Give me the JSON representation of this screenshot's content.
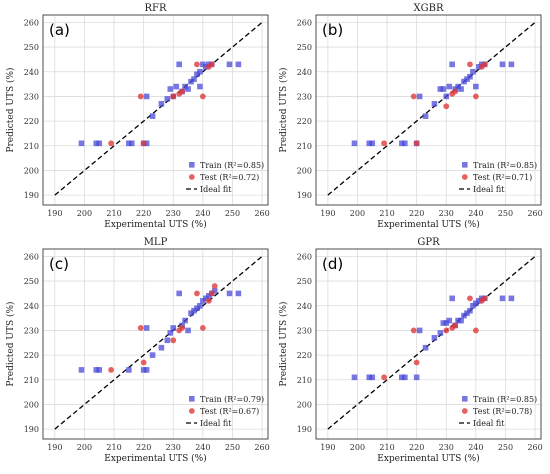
{
  "chart_data": [
    {
      "type": "scatter",
      "title": "RFR",
      "panel_label": "(a)",
      "xlabel": "Experimental UTS (%)",
      "ylabel": "Predicted UTS (%)",
      "xlim": [
        186,
        262
      ],
      "ylim": [
        186,
        263
      ],
      "ticks": [
        190,
        200,
        210,
        220,
        230,
        240,
        250,
        260
      ],
      "grid": true,
      "legend_position": "bottom-right",
      "legend": [
        "Train (R²=0.85)",
        "Test (R²=0.72)",
        "Ideal fit"
      ],
      "series": [
        {
          "name": "Train (R²=0.85)",
          "color": "#4a4ad8",
          "marker": "square",
          "points": [
            [
              199,
              211
            ],
            [
              204,
              211
            ],
            [
              205,
              211
            ],
            [
              215,
              211
            ],
            [
              216,
              211
            ],
            [
              220,
              211
            ],
            [
              221,
              211
            ],
            [
              221,
              230
            ],
            [
              223,
              222
            ],
            [
              226,
              227
            ],
            [
              228,
              229
            ],
            [
              229,
              233
            ],
            [
              230,
              230
            ],
            [
              231,
              234
            ],
            [
              232,
              243
            ],
            [
              233,
              232
            ],
            [
              234,
              234
            ],
            [
              235,
              233
            ],
            [
              236,
              236
            ],
            [
              237,
              237
            ],
            [
              238,
              239
            ],
            [
              239,
              234
            ],
            [
              239,
              240
            ],
            [
              240,
              243
            ],
            [
              241,
              242
            ],
            [
              242,
              243
            ],
            [
              243,
              243
            ],
            [
              249,
              243
            ],
            [
              252,
              243
            ]
          ]
        },
        {
          "name": "Test (R²=0.72)",
          "color": "#e03a3a",
          "marker": "circle",
          "points": [
            [
              209,
              211
            ],
            [
              219,
              230
            ],
            [
              220,
              211
            ],
            [
              230,
              230
            ],
            [
              232,
              231
            ],
            [
              233,
              232
            ],
            [
              238,
              243
            ],
            [
              240,
              230
            ],
            [
              242,
              242
            ],
            [
              243,
              243
            ]
          ]
        }
      ]
    },
    {
      "type": "scatter",
      "title": "XGBR",
      "panel_label": "(b)",
      "xlabel": "Experimental UTS (%)",
      "ylabel": "Predicted UTS (%)",
      "xlim": [
        186,
        262
      ],
      "ylim": [
        186,
        263
      ],
      "ticks": [
        190,
        200,
        210,
        220,
        230,
        240,
        250,
        260
      ],
      "grid": true,
      "legend_position": "bottom-right",
      "legend": [
        "Train (R²=0.85)",
        "Test (R²=0.71)",
        "Ideal fit"
      ],
      "series": [
        {
          "name": "Train (R²=0.85)",
          "color": "#4a4ad8",
          "marker": "square",
          "points": [
            [
              199,
              211
            ],
            [
              204,
              211
            ],
            [
              205,
              211
            ],
            [
              215,
              211
            ],
            [
              216,
              211
            ],
            [
              220,
              211
            ],
            [
              221,
              230
            ],
            [
              223,
              222
            ],
            [
              226,
              227
            ],
            [
              228,
              233
            ],
            [
              229,
              233
            ],
            [
              230,
              230
            ],
            [
              231,
              234
            ],
            [
              232,
              243
            ],
            [
              233,
              233
            ],
            [
              234,
              234
            ],
            [
              235,
              233
            ],
            [
              236,
              236
            ],
            [
              237,
              237
            ],
            [
              238,
              238
            ],
            [
              239,
              240
            ],
            [
              240,
              234
            ],
            [
              241,
              242
            ],
            [
              242,
              243
            ],
            [
              243,
              243
            ],
            [
              249,
              243
            ],
            [
              252,
              243
            ]
          ]
        },
        {
          "name": "Test (R²=0.71)",
          "color": "#e03a3a",
          "marker": "circle",
          "points": [
            [
              209,
              211
            ],
            [
              219,
              230
            ],
            [
              220,
              211
            ],
            [
              230,
              226
            ],
            [
              232,
              231
            ],
            [
              233,
              232
            ],
            [
              238,
              243
            ],
            [
              240,
              230
            ],
            [
              242,
              242
            ],
            [
              243,
              243
            ]
          ]
        }
      ]
    },
    {
      "type": "scatter",
      "title": "MLP",
      "panel_label": "(c)",
      "xlabel": "Experimental UTS (%)",
      "ylabel": "Predicted UTS (%)",
      "xlim": [
        186,
        262
      ],
      "ylim": [
        186,
        263
      ],
      "ticks": [
        190,
        200,
        210,
        220,
        230,
        240,
        250,
        260
      ],
      "grid": true,
      "legend_position": "bottom-right",
      "legend": [
        "Train (R²=0.79)",
        "Test (R²=0.67)",
        "Ideal fit"
      ],
      "series": [
        {
          "name": "Train (R²=0.79)",
          "color": "#4a4ad8",
          "marker": "square",
          "points": [
            [
              199,
              214
            ],
            [
              204,
              214
            ],
            [
              205,
              214
            ],
            [
              215,
              214
            ],
            [
              220,
              214
            ],
            [
              221,
              214
            ],
            [
              221,
              231
            ],
            [
              223,
              220
            ],
            [
              226,
              223
            ],
            [
              228,
              226
            ],
            [
              229,
              229
            ],
            [
              230,
              231
            ],
            [
              232,
              245
            ],
            [
              233,
              232
            ],
            [
              234,
              234
            ],
            [
              235,
              230
            ],
            [
              236,
              237
            ],
            [
              237,
              238
            ],
            [
              238,
              239
            ],
            [
              239,
              240
            ],
            [
              240,
              242
            ],
            [
              241,
              243
            ],
            [
              242,
              244
            ],
            [
              243,
              245
            ],
            [
              244,
              246
            ],
            [
              249,
              245
            ],
            [
              252,
              245
            ]
          ]
        },
        {
          "name": "Test (R²=0.67)",
          "color": "#e03a3a",
          "marker": "circle",
          "points": [
            [
              209,
              214
            ],
            [
              219,
              231
            ],
            [
              220,
              217
            ],
            [
              230,
              226
            ],
            [
              232,
              230
            ],
            [
              233,
              231
            ],
            [
              238,
              245
            ],
            [
              240,
              231
            ],
            [
              242,
              242
            ],
            [
              243,
              245
            ],
            [
              244,
              248
            ]
          ]
        }
      ]
    },
    {
      "type": "scatter",
      "title": "GPR",
      "panel_label": "(d)",
      "xlabel": "Experimental UTS (%)",
      "ylabel": "Predicted UTS (%)",
      "xlim": [
        186,
        262
      ],
      "ylim": [
        186,
        263
      ],
      "ticks": [
        190,
        200,
        210,
        220,
        230,
        240,
        250,
        260
      ],
      "grid": true,
      "legend_position": "bottom-right",
      "legend": [
        "Train (R²=0.85)",
        "Test (R²=0.78)",
        "Ideal fit"
      ],
      "series": [
        {
          "name": "Train (R²=0.85)",
          "color": "#4a4ad8",
          "marker": "square",
          "points": [
            [
              199,
              211
            ],
            [
              204,
              211
            ],
            [
              205,
              211
            ],
            [
              215,
              211
            ],
            [
              216,
              211
            ],
            [
              220,
              211
            ],
            [
              221,
              230
            ],
            [
              223,
              223
            ],
            [
              226,
              227
            ],
            [
              228,
              229
            ],
            [
              229,
              233
            ],
            [
              230,
              233
            ],
            [
              231,
              234
            ],
            [
              232,
              243
            ],
            [
              233,
              232
            ],
            [
              234,
              234
            ],
            [
              235,
              234
            ],
            [
              236,
              236
            ],
            [
              237,
              237
            ],
            [
              238,
              238
            ],
            [
              239,
              240
            ],
            [
              240,
              241
            ],
            [
              241,
              242
            ],
            [
              242,
              243
            ],
            [
              243,
              243
            ],
            [
              249,
              243
            ],
            [
              252,
              243
            ]
          ]
        },
        {
          "name": "Test (R²=0.78)",
          "color": "#e03a3a",
          "marker": "circle",
          "points": [
            [
              209,
              211
            ],
            [
              219,
              230
            ],
            [
              220,
              217
            ],
            [
              230,
              230
            ],
            [
              232,
              231
            ],
            [
              233,
              232
            ],
            [
              238,
              243
            ],
            [
              240,
              230
            ],
            [
              242,
              242
            ],
            [
              243,
              243
            ]
          ]
        }
      ]
    }
  ]
}
